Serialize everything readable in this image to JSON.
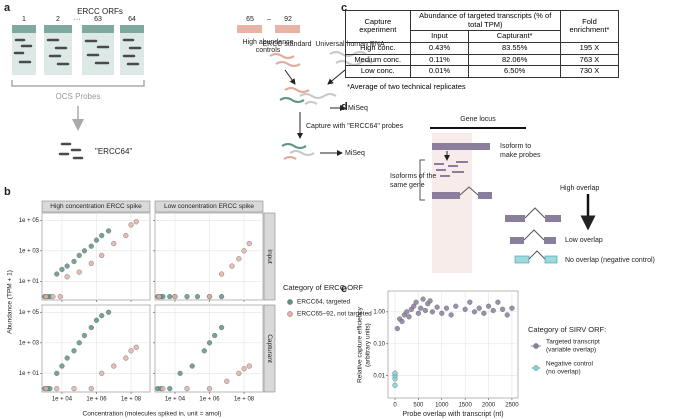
{
  "panel_a": {
    "label": "a",
    "title": "ERCC ORFs",
    "orf_numbers": [
      "1",
      "2",
      "···",
      "63",
      "64"
    ],
    "control_range": [
      "65",
      "–",
      "92"
    ],
    "controls_label": [
      "High abundance",
      "controls"
    ],
    "probes_label": "OCS Probes",
    "pool_label": "\"ERCC64\"",
    "standard_label": "ERCC standard",
    "rna_label": "Universal human RNA",
    "sequencer": [
      "MiSeq",
      "MiSeq"
    ],
    "capture_label": "Capture with \"ERCC64\" probes"
  },
  "panel_c": {
    "label": "c",
    "table": {
      "header": [
        "Capture experiment",
        "Abundance of targeted transcripts (% of total TPM)",
        "Fold enrichment*"
      ],
      "subheader": [
        "Input",
        "Capturant*"
      ],
      "rows": [
        [
          "High conc.",
          "0.43%",
          "83.55%",
          "195 X"
        ],
        [
          "Medium conc.",
          "0.11%",
          "82.06%",
          "763 X"
        ],
        [
          "Low conc.",
          "0.01%",
          "6.50%",
          "730 X"
        ]
      ]
    },
    "footnote": "*Average of two technical replicates"
  },
  "panel_d": {
    "label": "d",
    "locus_label": "Gene locus",
    "probe_isoform_label": [
      "Isoform to",
      "make probes"
    ],
    "isoforms_label": [
      "Isoforms of the",
      "same gene"
    ],
    "high_label": "High overlap",
    "low_label": "Low overlap",
    "none_label": "No overlap (negative control)"
  },
  "chart_data": [
    {
      "type": "scatter",
      "label": "b",
      "xlabel": "Concentration (molecules spiked in, unit = amol)",
      "ylabel": "Abundance (TPM + 1)",
      "xscale": "log",
      "yscale": "log",
      "grid": true,
      "xlim": [
        700,
        1250000000
      ],
      "ylim": [
        0.6,
        300000
      ],
      "xticks": [
        {
          "value": 10000,
          "label": "1e + 04"
        },
        {
          "value": 1000000,
          "label": "1e + 06"
        },
        {
          "value": 100000000,
          "label": "1e + 08"
        }
      ],
      "yticks": [
        {
          "value": 10,
          "label": "1e + 01"
        },
        {
          "value": 1000,
          "label": "1e + 03"
        },
        {
          "value": 100000,
          "label": "1e + 05"
        }
      ],
      "columns": [
        "High concentration ERCC spike",
        "Low concentration ERCC spike"
      ],
      "rows": [
        "Input",
        "Capturant"
      ],
      "legend_title": "Category of ERCC ORF",
      "series": [
        {
          "name": "ERCC64, targeted",
          "color": "#5e9585",
          "facets": [
            {
              "x": [
                1000,
                1500,
                2000,
                5000,
                10000,
                20000,
                50000,
                100000,
                200000,
                500000,
                1000000,
                2000000,
                5000000
              ],
              "y": [
                1,
                1,
                1,
                30,
                60,
                100,
                200,
                500,
                1000,
                2000,
                5000,
                10000,
                20000
              ]
            },
            {
              "x": [
                1000,
                1500,
                2000,
                5000,
                10000,
                50000,
                200000,
                1000000,
                5000000
              ],
              "y": [
                1,
                1,
                1,
                1,
                1,
                1,
                1,
                1,
                1
              ]
            },
            {
              "x": [
                1000,
                1500,
                2000,
                5000,
                10000,
                20000,
                50000,
                100000,
                200000,
                500000,
                1000000,
                2000000,
                5000000
              ],
              "y": [
                1,
                1,
                1,
                10,
                30,
                100,
                300,
                1000,
                3000,
                10000,
                30000,
                60000,
                100000
              ]
            },
            {
              "x": [
                1000,
                1500,
                5000,
                20000,
                100000,
                500000,
                1000000,
                2000000,
                5000000
              ],
              "y": [
                1,
                1,
                1,
                10,
                30,
                300,
                1000,
                3000,
                10000
              ]
            }
          ]
        },
        {
          "name": "ERCC65–92, not targeted",
          "color": "#e3b2a6",
          "facets": [
            {
              "x": [
                1200,
                3000,
                8000,
                20000,
                100000,
                500000,
                2000000,
                10000000,
                50000000,
                100000000,
                200000000
              ],
              "y": [
                1,
                1,
                1,
                20,
                40,
                150,
                500,
                3000,
                10000,
                50000,
                80000
              ]
            },
            {
              "x": [
                1200,
                10000,
                1000000,
                5000000,
                20000000,
                50000000,
                100000000,
                200000000
              ],
              "y": [
                1,
                1,
                1,
                30,
                100,
                300,
                1000,
                3000
              ]
            },
            {
              "x": [
                1200,
                5000,
                50000,
                500000,
                2000000,
                10000000,
                50000000,
                100000000,
                200000000
              ],
              "y": [
                1,
                1,
                1,
                1,
                10,
                30,
                100,
                300,
                500
              ]
            },
            {
              "x": [
                2000,
                50000,
                1000000,
                10000000,
                50000000,
                100000000,
                200000000
              ],
              "y": [
                1,
                1,
                1,
                3,
                10,
                20,
                30
              ]
            }
          ]
        }
      ]
    },
    {
      "type": "scatter",
      "label": "e",
      "xlabel": "Probe overlap with transcript (nt)",
      "ylabel": [
        "Relative capture efficiency",
        "(arbitrary units)"
      ],
      "yscale": "log",
      "grid": true,
      "xlim": [
        -150,
        2630
      ],
      "ylim": [
        0.002,
        4.5
      ],
      "xticks": [
        0,
        500,
        1000,
        1500,
        2000,
        2500
      ],
      "yticks": [
        0.01,
        {
          "value": 0.1,
          "label": "0.10"
        },
        {
          "value": 1,
          "label": "1.00"
        }
      ],
      "legend_title": "Category of SIRV ORF:",
      "series": [
        {
          "name": "Targeted transcript",
          "subname": "(variable overlap)",
          "color": "#8b7d9c",
          "x": [
            50,
            100,
            150,
            200,
            250,
            300,
            350,
            400,
            450,
            500,
            550,
            600,
            650,
            700,
            750,
            800,
            900,
            1000,
            1100,
            1200,
            1300,
            1500,
            1600,
            1700,
            1800,
            1900,
            2000,
            2100,
            2200,
            2300,
            2400,
            2500
          ],
          "y": [
            0.3,
            0.6,
            0.5,
            0.8,
            1,
            0.7,
            1.2,
            1.5,
            2,
            0.9,
            1.3,
            2.5,
            1.1,
            1.8,
            2.2,
            1,
            1.4,
            0.9,
            1.3,
            0.8,
            1.5,
            1.2,
            2,
            1,
            1.3,
            0.9,
            1.5,
            1.1,
            2,
            1.2,
            0.8,
            1.3
          ]
        },
        {
          "name": "Negative control",
          "subname": "(no overlap)",
          "color": "#82d3d8",
          "x": [
            0,
            0,
            0,
            0
          ],
          "y": [
            0.005,
            0.008,
            0.01,
            0.012
          ]
        }
      ]
    }
  ]
}
